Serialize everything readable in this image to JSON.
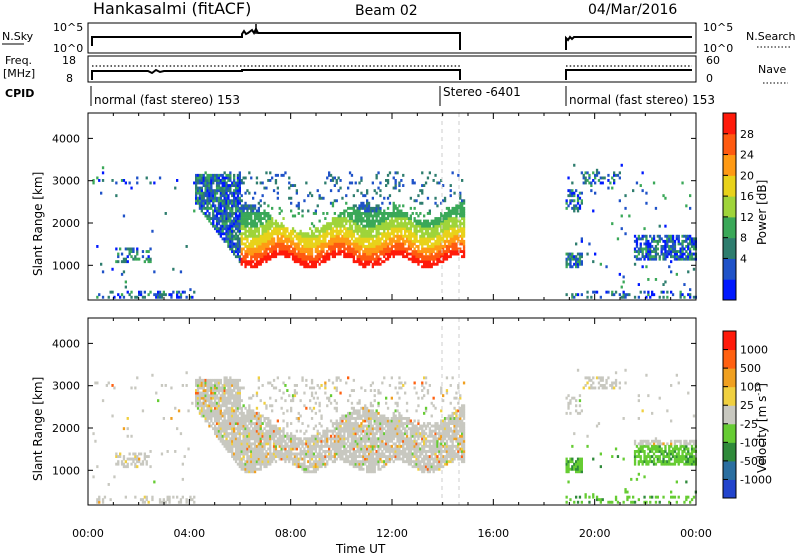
{
  "header": {
    "title": "Hankasalmi (fitACF)",
    "beam": "Beam 02",
    "date": "04/Mar/2016"
  },
  "top_panels": {
    "nsky_label": "N.Sky",
    "nsky_ticks": [
      "10^5",
      "10^0"
    ],
    "nsearch_label": "N.Search",
    "nsearch_ticks": [
      "10^5",
      "10^0"
    ],
    "freq_label_1": "Freq.",
    "freq_label_2": "[MHz]",
    "freq_ticks": [
      "18",
      "8"
    ],
    "nave_label": "Nave",
    "nave_ticks": [
      "60",
      "0"
    ],
    "cpid_label": "CPID",
    "cpid_segments": [
      {
        "text": "normal (fast stereo) 153"
      },
      {
        "text": "Stereo -6401"
      },
      {
        "text": "normal (fast stereo) 153"
      }
    ]
  },
  "chart_data": [
    {
      "type": "heatmap",
      "quantity": "Power",
      "ylabel": "Slant Range [km]",
      "xlabel": "",
      "ylim": [
        180,
        4600
      ],
      "yticks": [
        "4000",
        "3000",
        "2000",
        "1000"
      ],
      "xlim_hours": [
        0,
        24
      ],
      "colorbar": {
        "label": "Power [dB]",
        "ticks": [
          "28",
          "24",
          "20",
          "16",
          "12",
          "8",
          "4"
        ],
        "colors": [
          "#0018ff",
          "#1f52c8",
          "#2e7d6e",
          "#3aa858",
          "#9fd43a",
          "#e8d21a",
          "#ff9a14",
          "#ff5a10",
          "#ff1a0a"
        ]
      }
    },
    {
      "type": "heatmap",
      "quantity": "Velocity",
      "ylabel": "Slant Range [km]",
      "xlabel": "Time UT",
      "ylim": [
        180,
        4600
      ],
      "yticks": [
        "4000",
        "3000",
        "2000",
        "1000"
      ],
      "xlim_hours": [
        0,
        24
      ],
      "xticks": [
        "00:00",
        "04:00",
        "08:00",
        "12:00",
        "16:00",
        "20:00",
        "00:00"
      ],
      "colorbar": {
        "label": "Velocity [m s",
        "label_sup": "-1",
        "label_end": "]",
        "ticks": [
          "1000",
          "500",
          "100",
          "25",
          "-25",
          "-100",
          "-500",
          "-1000"
        ],
        "colors": [
          "#2244cc",
          "#2a6ea0",
          "#2f8a3a",
          "#66cc33",
          "#c8c8c0",
          "#f0d040",
          "#f0a020",
          "#ff6010",
          "#ff1a0a"
        ]
      }
    }
  ]
}
